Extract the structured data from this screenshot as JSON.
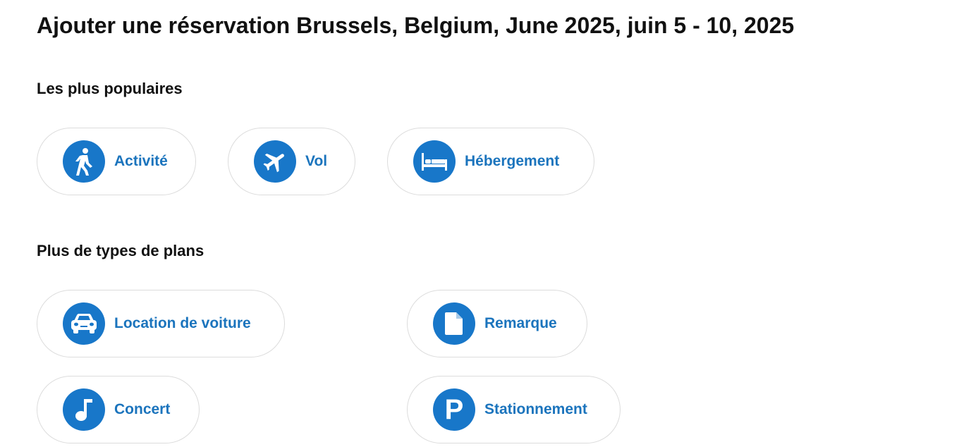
{
  "page": {
    "title": "Ajouter une réservation Brussels, Belgium, June 2025, juin 5 - 10, 2025"
  },
  "popular": {
    "heading": "Les plus populaires",
    "items": [
      {
        "label": "Activité",
        "icon": "walking-person-icon"
      },
      {
        "label": "Vol",
        "icon": "airplane-icon"
      },
      {
        "label": "Hébergement",
        "icon": "bed-icon"
      }
    ]
  },
  "more": {
    "heading": "Plus de types de plans",
    "items": [
      {
        "label": "Location de voiture",
        "icon": "car-icon"
      },
      {
        "label": "Remarque",
        "icon": "document-icon"
      },
      {
        "label": "Concert",
        "icon": "music-note-icon"
      },
      {
        "label": "Stationnement",
        "icon": "parking-icon"
      }
    ]
  },
  "colors": {
    "accent": "#1877c9",
    "label": "#1b74bd",
    "border": "#dcdcdc",
    "title": "#111111"
  }
}
